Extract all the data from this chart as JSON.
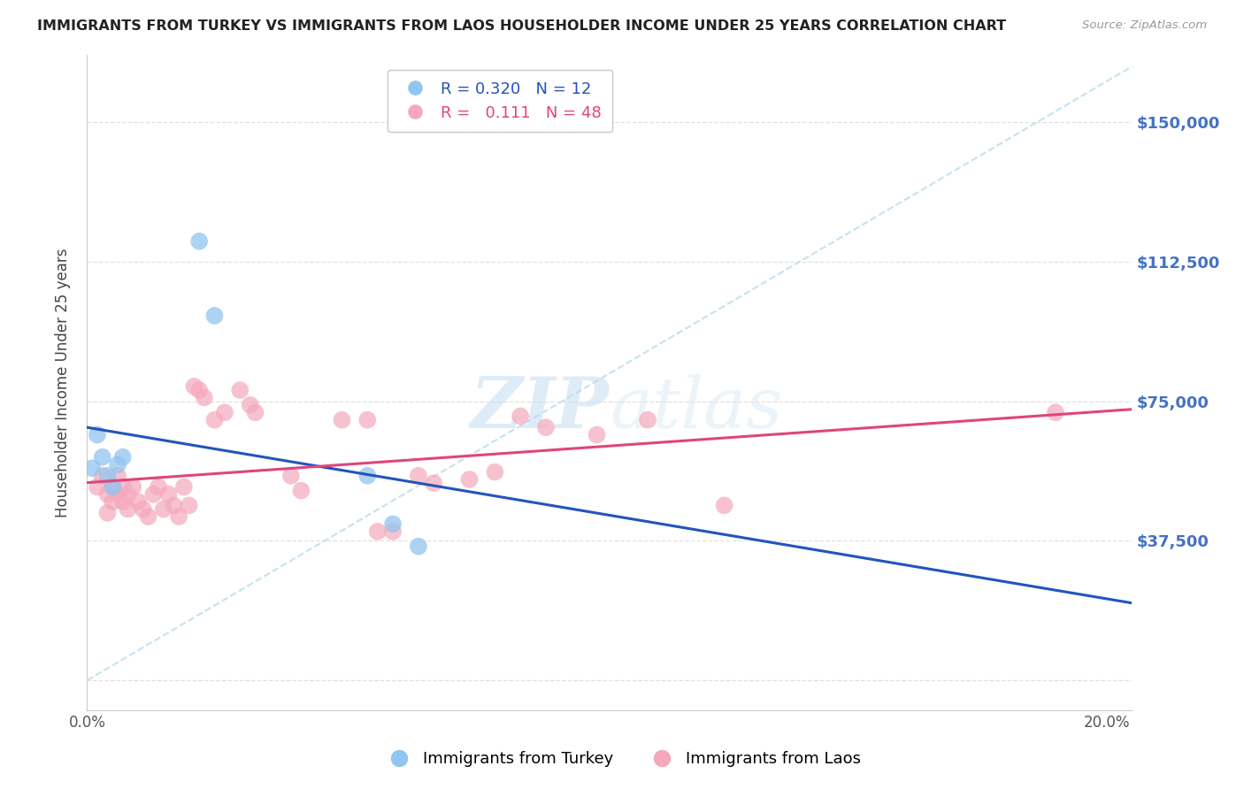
{
  "title": "IMMIGRANTS FROM TURKEY VS IMMIGRANTS FROM LAOS HOUSEHOLDER INCOME UNDER 25 YEARS CORRELATION CHART",
  "source": "Source: ZipAtlas.com",
  "ylabel": "Householder Income Under 25 years",
  "xlim": [
    0.0,
    0.205
  ],
  "ylim": [
    -8000,
    168000
  ],
  "yticks": [
    0,
    37500,
    75000,
    112500,
    150000
  ],
  "xticks": [
    0.0,
    0.05,
    0.1,
    0.15,
    0.2
  ],
  "turkey_color": "#92C5F0",
  "laos_color": "#F5A8BC",
  "turkey_line_color": "#2255BB",
  "laos_line_color": "#E0457A",
  "ref_line_color": "#BBDDEE",
  "R_turkey": 0.32,
  "N_turkey": 12,
  "R_laos": 0.111,
  "N_laos": 48,
  "turkey_x": [
    0.001,
    0.002,
    0.003,
    0.004,
    0.005,
    0.006,
    0.007,
    0.022,
    0.025,
    0.055,
    0.06,
    0.065
  ],
  "turkey_y": [
    57000,
    66000,
    60000,
    55000,
    52000,
    58000,
    60000,
    118000,
    98000,
    55000,
    42000,
    36000
  ],
  "laos_x": [
    0.002,
    0.003,
    0.004,
    0.004,
    0.005,
    0.005,
    0.006,
    0.006,
    0.007,
    0.007,
    0.008,
    0.008,
    0.009,
    0.01,
    0.011,
    0.012,
    0.013,
    0.014,
    0.015,
    0.016,
    0.017,
    0.018,
    0.019,
    0.02,
    0.021,
    0.022,
    0.023,
    0.025,
    0.027,
    0.03,
    0.032,
    0.033,
    0.04,
    0.042,
    0.05,
    0.055,
    0.057,
    0.06,
    0.065,
    0.068,
    0.075,
    0.08,
    0.085,
    0.09,
    0.1,
    0.11,
    0.125,
    0.19
  ],
  "laos_y": [
    52000,
    55000,
    50000,
    45000,
    52000,
    48000,
    55000,
    50000,
    52000,
    48000,
    50000,
    46000,
    52000,
    48000,
    46000,
    44000,
    50000,
    52000,
    46000,
    50000,
    47000,
    44000,
    52000,
    47000,
    79000,
    78000,
    76000,
    70000,
    72000,
    78000,
    74000,
    72000,
    55000,
    51000,
    70000,
    70000,
    40000,
    40000,
    55000,
    53000,
    54000,
    56000,
    71000,
    68000,
    66000,
    70000,
    47000,
    72000
  ],
  "background_color": "#ffffff",
  "grid_color": "#dddddd",
  "title_color": "#222222",
  "right_label_color": "#4472C4",
  "source_color": "#999999"
}
